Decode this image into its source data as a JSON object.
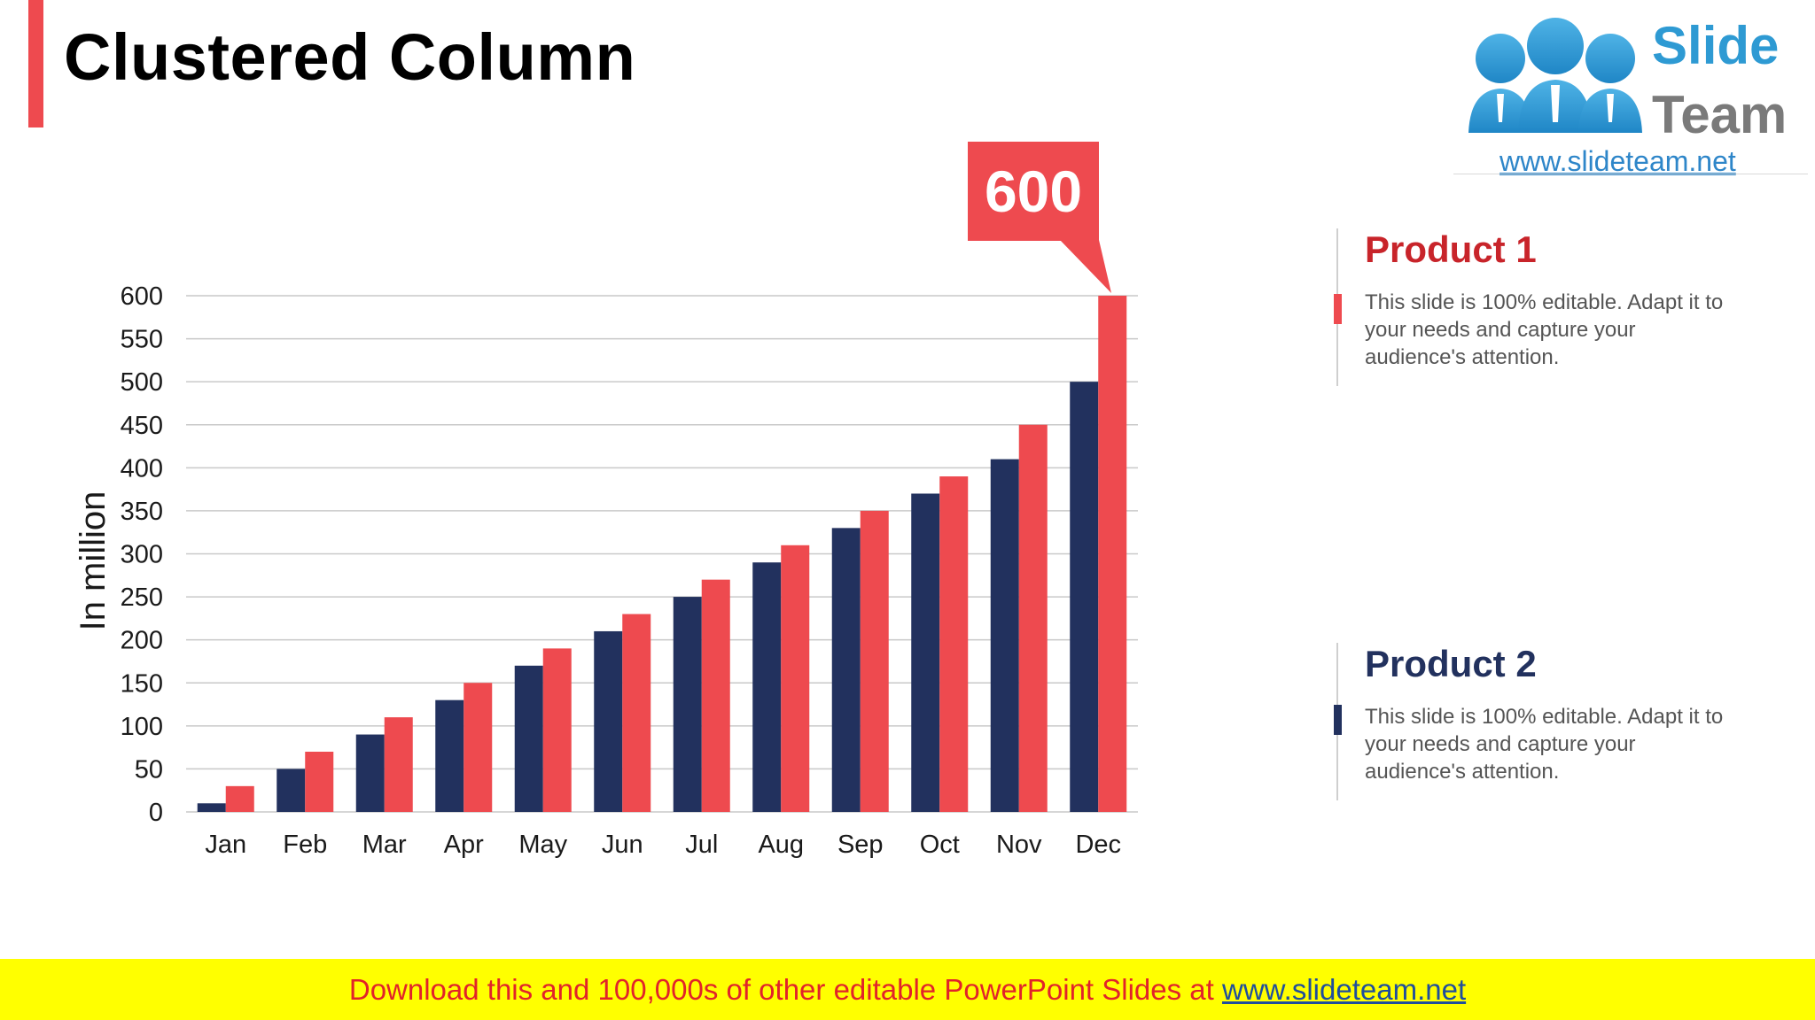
{
  "page": {
    "title": "Clustered Column"
  },
  "logo": {
    "word1": "Slide",
    "word2": "Team",
    "url": "www.slideteam.net",
    "icon": "people-group-icon"
  },
  "callout": {
    "text": "600"
  },
  "legend": [
    {
      "title": "Product 1",
      "desc": "This slide is 100% editable. Adapt it to your needs and capture your audience's attention.",
      "color": "#ee4a4f"
    },
    {
      "title": "Product 2",
      "desc": "This slide is 100% editable. Adapt it to your needs and capture your audience's attention.",
      "color": "#22315e"
    }
  ],
  "footer": {
    "text": "Download this and 100,000s of other editable PowerPoint Slides at ",
    "link": "www.slideteam.net"
  },
  "chart_data": {
    "type": "bar",
    "categories": [
      "Jan",
      "Feb",
      "Mar",
      "Apr",
      "May",
      "Jun",
      "Jul",
      "Aug",
      "Sep",
      "Oct",
      "Nov",
      "Dec"
    ],
    "series": [
      {
        "name": "Product 2",
        "color": "#22315e",
        "values": [
          10,
          50,
          90,
          130,
          170,
          210,
          250,
          290,
          330,
          370,
          410,
          500
        ]
      },
      {
        "name": "Product 1",
        "color": "#ee4a4f",
        "values": [
          30,
          70,
          110,
          150,
          190,
          230,
          270,
          310,
          350,
          390,
          450,
          600
        ]
      }
    ],
    "ylabel": "In million",
    "ylim": [
      0,
      600
    ],
    "yticks": [
      0,
      50,
      100,
      150,
      200,
      250,
      300,
      350,
      400,
      450,
      500,
      550,
      600
    ],
    "grid": true,
    "legend_position": "right"
  }
}
